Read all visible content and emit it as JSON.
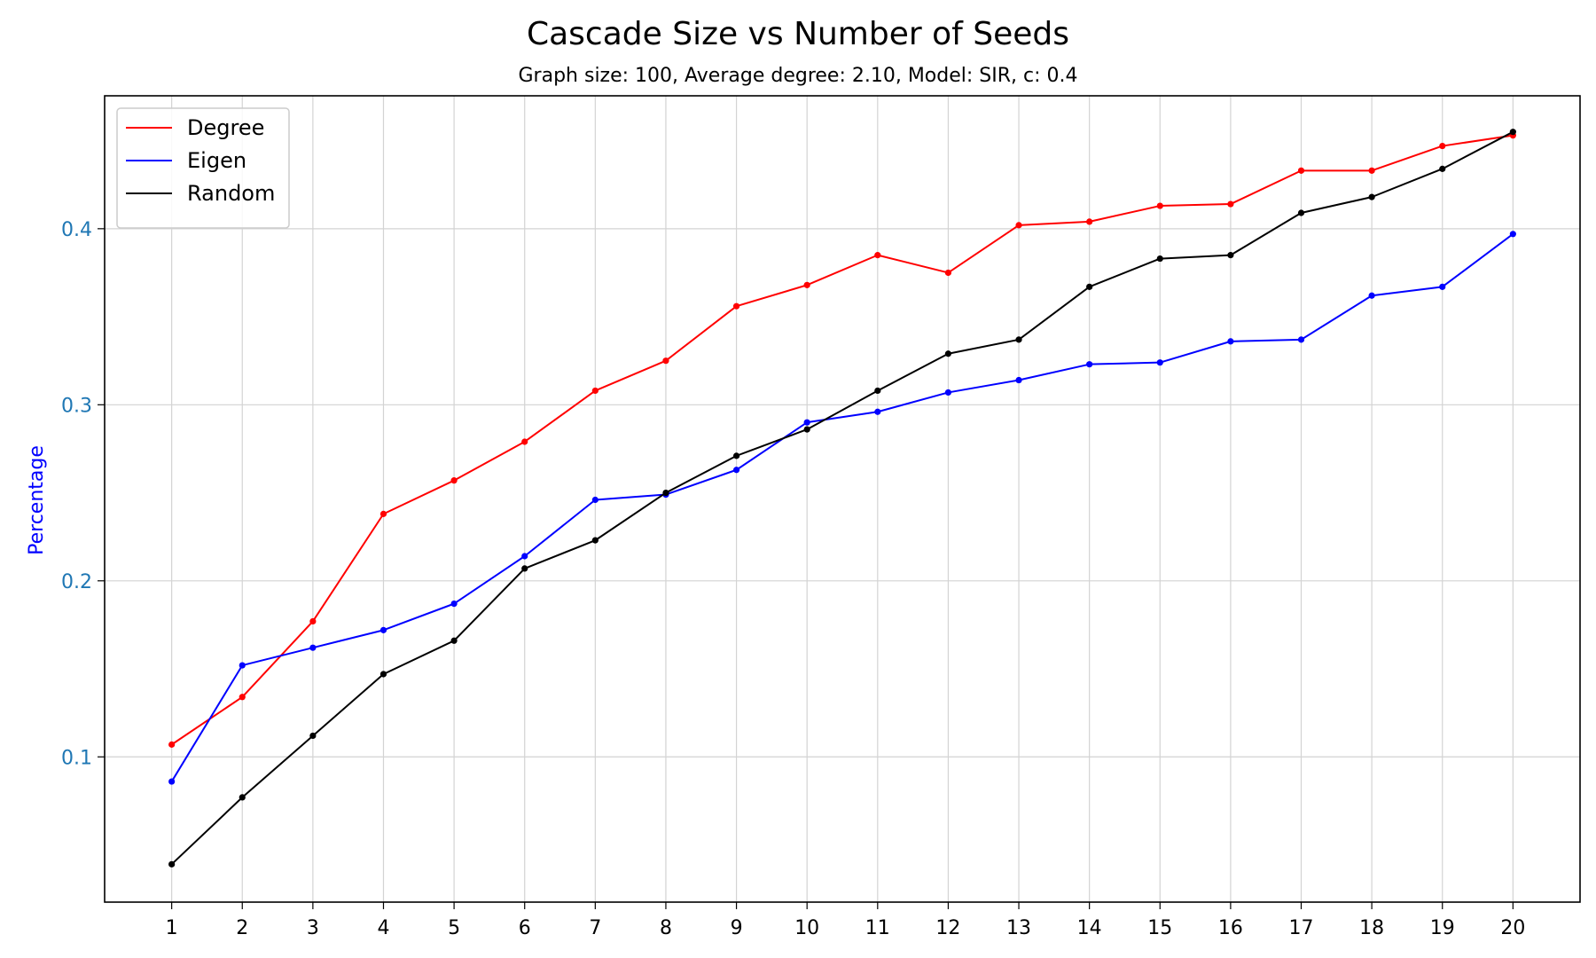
{
  "chart_data": {
    "type": "line",
    "title": "Cascade Size vs Number of Seeds",
    "subtitle": "Graph size: 100,   Average degree: 2.10,   Model: SIR,   c: 0.4",
    "xlabel": "",
    "ylabel": "Percentage",
    "x": [
      1,
      2,
      3,
      4,
      5,
      6,
      7,
      8,
      9,
      10,
      11,
      12,
      13,
      14,
      15,
      16,
      17,
      18,
      19,
      20
    ],
    "x_tick_labels": [
      "1",
      "2",
      "3",
      "4",
      "5",
      "6",
      "7",
      "8",
      "9",
      "10",
      "11",
      "12",
      "13",
      "14",
      "15",
      "16",
      "17",
      "18",
      "19",
      "20"
    ],
    "y_ticks": [
      0.1,
      0.2,
      0.3,
      0.4
    ],
    "y_tick_labels": [
      "0.1",
      "0.2",
      "0.3",
      "0.4"
    ],
    "xlim": [
      0.05,
      20.95
    ],
    "ylim": [
      0.0175,
      0.4755
    ],
    "grid": true,
    "legend_position": "upper-left",
    "colors": {
      "ylabel": "#0000ff",
      "y_ticks": "#1f77b4",
      "x_ticks": "#000000",
      "grid": "#d3d3d3"
    },
    "series": [
      {
        "name": "Degree",
        "color": "#ff0000",
        "values": [
          0.107,
          0.134,
          0.177,
          0.238,
          0.257,
          0.279,
          0.308,
          0.325,
          0.356,
          0.368,
          0.385,
          0.375,
          0.402,
          0.404,
          0.413,
          0.414,
          0.433,
          0.433,
          0.447,
          0.453
        ]
      },
      {
        "name": "Eigen",
        "color": "#0000ff",
        "values": [
          0.086,
          0.152,
          0.162,
          0.172,
          0.187,
          0.214,
          0.246,
          0.249,
          0.263,
          0.29,
          0.296,
          0.307,
          0.314,
          0.323,
          0.324,
          0.336,
          0.337,
          0.362,
          0.367,
          0.397
        ]
      },
      {
        "name": "Random",
        "color": "#000000",
        "values": [
          0.039,
          0.077,
          0.112,
          0.147,
          0.166,
          0.207,
          0.223,
          0.25,
          0.271,
          0.286,
          0.308,
          0.329,
          0.337,
          0.367,
          0.383,
          0.385,
          0.409,
          0.418,
          0.434,
          0.455
        ]
      }
    ]
  }
}
